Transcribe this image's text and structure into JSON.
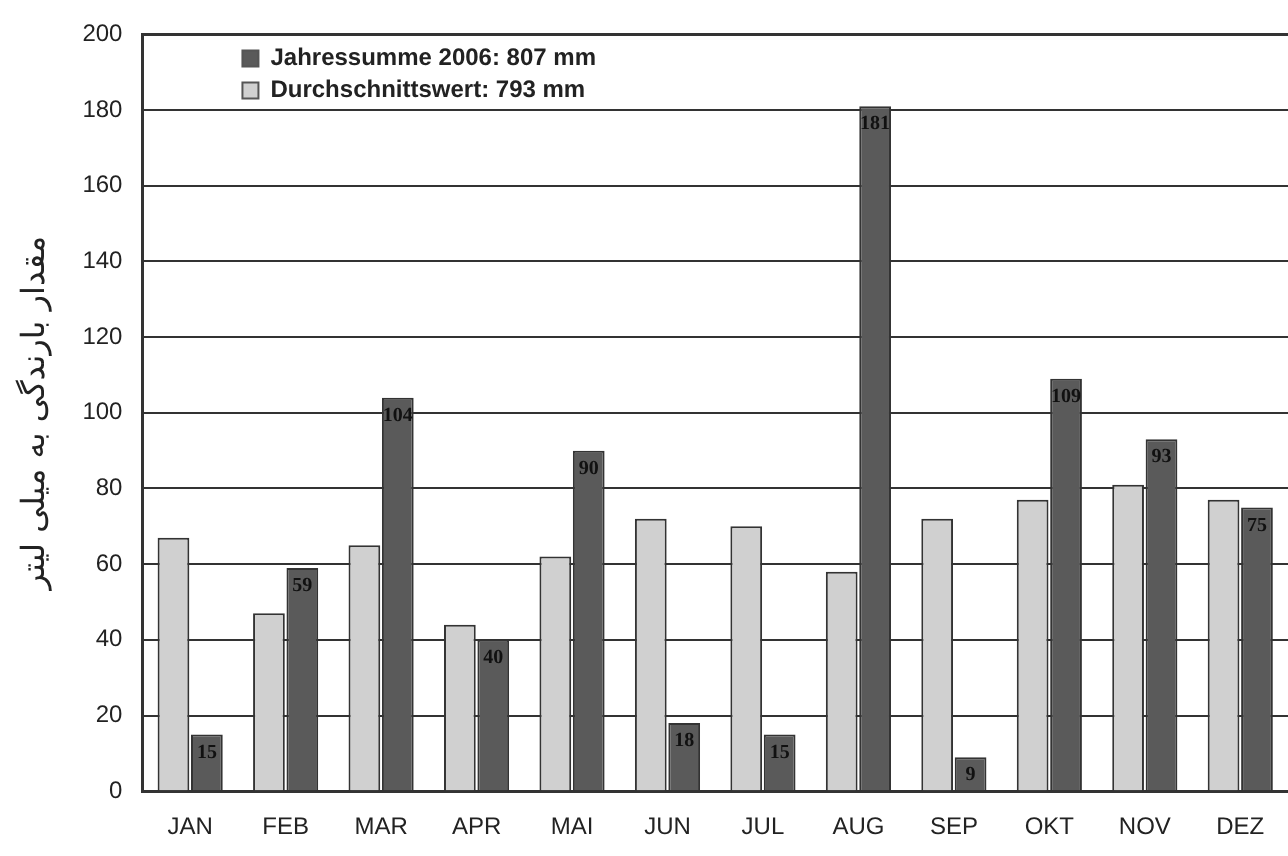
{
  "chart_data": {
    "type": "bar",
    "ylabel": "مقدار بارندگی به میلی لیتر",
    "categories": [
      "JAN",
      "FEB",
      "MAR",
      "APR",
      "MAI",
      "JUN",
      "JUL",
      "AUG",
      "SEP",
      "OKT",
      "NOV",
      "DEZ"
    ],
    "series": [
      {
        "name": "Durchschnittswert: 793 mm",
        "color": "#d0d0d0",
        "values": [
          67,
          47,
          65,
          44,
          62,
          72,
          70,
          58,
          72,
          77,
          81,
          77
        ]
      },
      {
        "name": "Jahressumme 2006: 807 mm",
        "color": "#5a5a5a",
        "values": [
          15,
          59,
          104,
          40,
          90,
          18,
          15,
          181,
          9,
          109,
          93,
          75
        ],
        "value_labels": [
          "15",
          "59",
          "104",
          "40",
          "90",
          "18",
          "15",
          "181",
          "9",
          "109",
          "93",
          "75"
        ]
      }
    ],
    "ylim": [
      0,
      200
    ],
    "yticks": [
      0,
      20,
      40,
      60,
      80,
      100,
      120,
      140,
      160,
      180,
      200
    ],
    "grid": "y",
    "legend": "top left"
  }
}
